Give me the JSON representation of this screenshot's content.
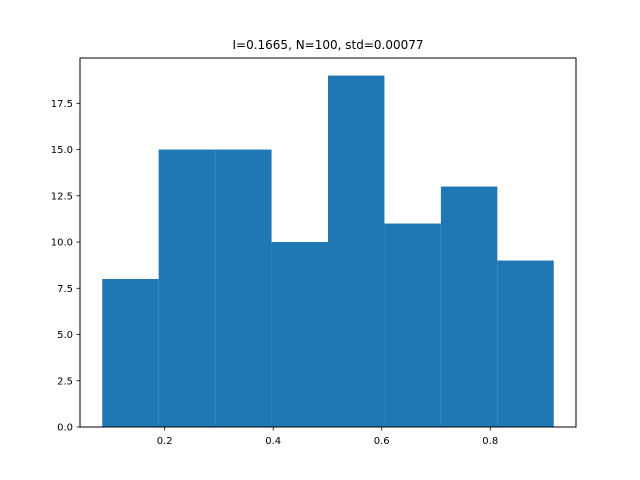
{
  "chart_data": {
    "type": "bar",
    "title": "I=0.1665, N=100, std=0.00077",
    "xlabel": "",
    "ylabel": "",
    "bins": [
      {
        "x0": 0.085,
        "x1": 0.189,
        "count": 8
      },
      {
        "x0": 0.189,
        "x1": 0.293,
        "count": 15
      },
      {
        "x0": 0.293,
        "x1": 0.397,
        "count": 15
      },
      {
        "x0": 0.397,
        "x1": 0.501,
        "count": 10
      },
      {
        "x0": 0.501,
        "x1": 0.605,
        "count": 19
      },
      {
        "x0": 0.605,
        "x1": 0.709,
        "count": 11
      },
      {
        "x0": 0.709,
        "x1": 0.813,
        "count": 13
      },
      {
        "x0": 0.813,
        "x1": 0.917,
        "count": 9
      }
    ],
    "xlim": [
      0.044,
      0.958
    ],
    "ylim": [
      0,
      19.95
    ],
    "xticks": [
      0.2,
      0.4,
      0.6,
      0.8
    ],
    "xtick_labels": [
      "0.2",
      "0.4",
      "0.6",
      "0.8"
    ],
    "yticks": [
      0,
      2.5,
      5,
      7.5,
      10,
      12.5,
      15,
      17.5
    ],
    "ytick_labels": [
      "0.0",
      "2.5",
      "5.0",
      "7.5",
      "10.0",
      "12.5",
      "15.0",
      "17.5"
    ],
    "grid": false,
    "bar_color": "#1f77b4"
  }
}
